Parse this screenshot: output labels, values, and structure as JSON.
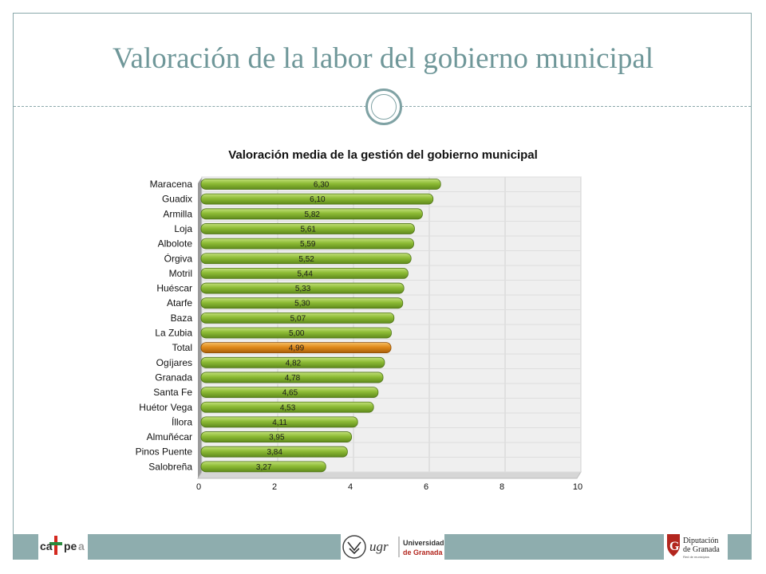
{
  "slide": {
    "title": "Valoración de la labor del gobierno municipal"
  },
  "chart_data": {
    "type": "bar",
    "orientation": "horizontal",
    "title": "Valoración media de la gestión del gobierno municipal",
    "categories": [
      "Maracena",
      "Guadix",
      "Armilla",
      "Loja",
      "Albolote",
      "Órgiva",
      "Motril",
      "Huéscar",
      "Atarfe",
      "Baza",
      "La Zubia",
      "Total",
      "Ogíjares",
      "Granada",
      "Santa Fe",
      "Huétor Vega",
      "Íllora",
      "Almuñécar",
      "Pinos Puente",
      "Salobreña"
    ],
    "values": [
      6.3,
      6.1,
      5.82,
      5.61,
      5.59,
      5.52,
      5.44,
      5.33,
      5.3,
      5.07,
      5.0,
      4.99,
      4.82,
      4.78,
      4.65,
      4.53,
      4.11,
      3.95,
      3.84,
      3.27
    ],
    "value_labels": [
      "6,30",
      "6,10",
      "5,82",
      "5,61",
      "5,59",
      "5,52",
      "5,44",
      "5,33",
      "5,30",
      "5,07",
      "5,00",
      "4,99",
      "4,82",
      "4,78",
      "4,65",
      "4,53",
      "4,11",
      "3,95",
      "3,84",
      "3,27"
    ],
    "highlight": "Total",
    "x_ticks": [
      0,
      2,
      4,
      6,
      8,
      10
    ],
    "xlim": [
      0,
      10
    ],
    "grid": true,
    "colors": {
      "bar": "#8dbb35",
      "highlight": "#e08a1a"
    }
  },
  "footer": {
    "logos": {
      "cadpea": {
        "name": "cadpea-logo",
        "text": "cadpea"
      },
      "ugr": {
        "name": "ugr-logo",
        "mark": "ugr",
        "line1": "Universidad",
        "line2": "de Granada"
      },
      "dipu": {
        "name": "diputacion-logo",
        "line1": "Diputación",
        "line2": "de Granada",
        "line3": "Red de municipios"
      }
    }
  }
}
